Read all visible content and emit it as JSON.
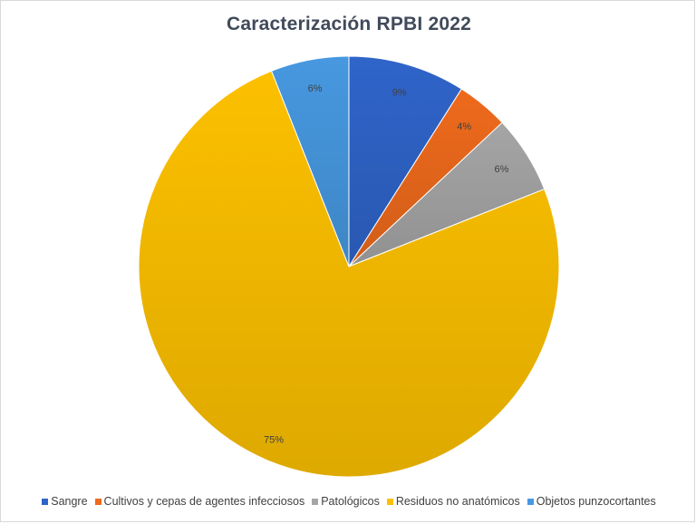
{
  "chart_data": {
    "type": "pie",
    "title": "Caracterización RPBI 2022",
    "categories": [
      "Sangre",
      "Cultivos y cepas de agentes infecciosos",
      "Patológicos",
      "Residuos no anatómicos",
      "Objetos punzocortantes"
    ],
    "values": [
      9,
      4,
      6,
      75,
      6
    ],
    "labels": [
      "9%",
      "4%",
      "6%",
      "75%",
      "6%"
    ],
    "colors": [
      "#2f64c9",
      "#ee6a1c",
      "#a5a5a5",
      "#fcc000",
      "#4798e0"
    ],
    "legend_position": "bottom",
    "start_angle_deg": 0,
    "direction": "clockwise"
  },
  "legend": {
    "items": [
      {
        "label": "Sangre",
        "color": "#2f64c9"
      },
      {
        "label": "Cultivos y cepas de agentes infecciosos",
        "color": "#ee6a1c"
      },
      {
        "label": "Patológicos",
        "color": "#a5a5a5"
      },
      {
        "label": "Residuos no anatómicos",
        "color": "#fcc000"
      },
      {
        "label": "Objetos punzocortantes",
        "color": "#4798e0"
      }
    ]
  }
}
